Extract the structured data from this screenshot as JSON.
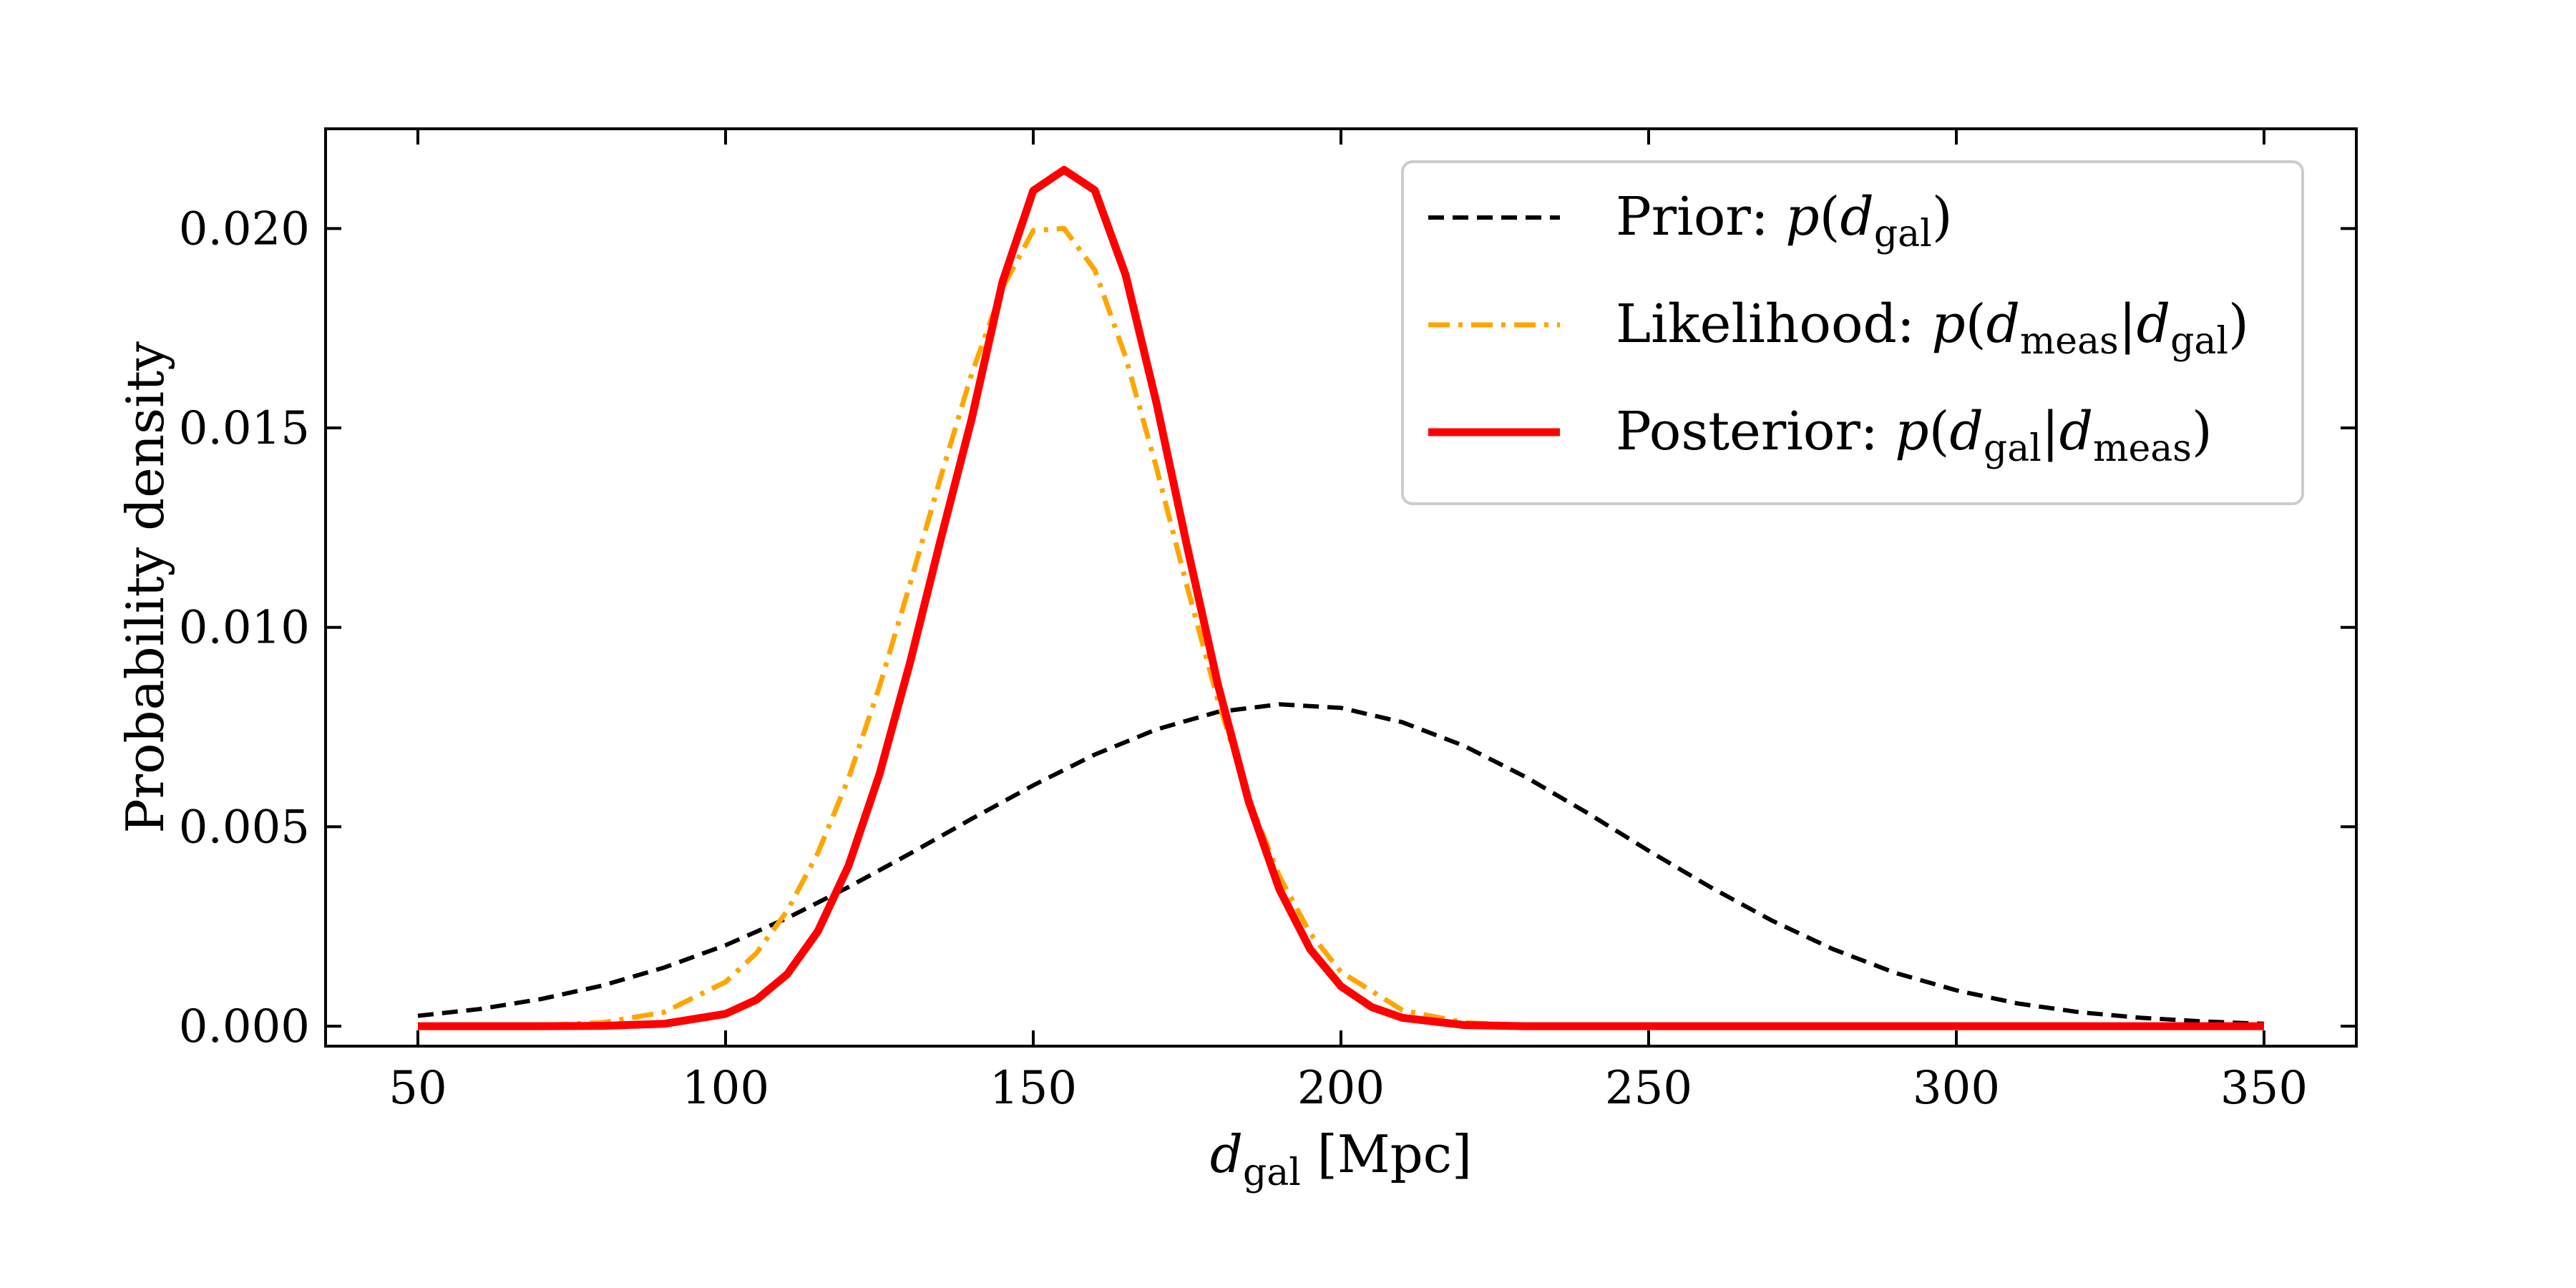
{
  "chart_data": {
    "type": "line",
    "xlabel": {
      "var": "d",
      "sub": "gal",
      "suffix": " [Mpc]"
    },
    "ylabel": "Probability density",
    "xlim": [
      35,
      365
    ],
    "ylim": [
      -0.0005,
      0.0225
    ],
    "xticks": [
      50,
      100,
      150,
      200,
      250,
      300,
      350
    ],
    "xtick_labels": [
      "50",
      "100",
      "150",
      "200",
      "250",
      "300",
      "350"
    ],
    "yticks": [
      0.0,
      0.005,
      0.01,
      0.015,
      0.02
    ],
    "ytick_labels": [
      "0.000",
      "0.005",
      "0.010",
      "0.015",
      "0.020"
    ],
    "grid": false,
    "legend_position": "top-right",
    "series": [
      {
        "name": "Prior: p(d_gal)",
        "legend": {
          "prefix": "Prior: ",
          "math": [
            [
              "p(",
              ""
            ],
            [
              "d",
              "gal"
            ],
            [
              ")",
              ""
            ]
          ]
        },
        "style": "dashed",
        "color": "#000000",
        "x": [
          50,
          60,
          70,
          80,
          90,
          100,
          110,
          120,
          130,
          140,
          150,
          160,
          170,
          180,
          190,
          200,
          210,
          220,
          230,
          240,
          250,
          260,
          270,
          280,
          290,
          300,
          310,
          320,
          330,
          340,
          350
        ],
        "y": [
          0.00026,
          0.00043,
          0.00068,
          0.00102,
          0.00147,
          0.00203,
          0.00271,
          0.00349,
          0.00433,
          0.0052,
          0.00604,
          0.00681,
          0.00744,
          0.00788,
          0.00807,
          0.00798,
          0.00762,
          0.00703,
          0.00625,
          0.00535,
          0.0044,
          0.00349,
          0.00265,
          0.00193,
          0.00134,
          0.0009,
          0.00057,
          0.00035,
          0.00021,
          0.00012,
          6e-05
        ]
      },
      {
        "name": "Likelihood: p(d_meas|d_gal)",
        "legend": {
          "prefix": "Likelihood: ",
          "math": [
            [
              "p(",
              ""
            ],
            [
              "d",
              "meas"
            ],
            [
              "|",
              ""
            ],
            [
              "d",
              "gal"
            ],
            [
              ")",
              ""
            ]
          ]
        },
        "style": "dashdot",
        "color": "#FFA500",
        "x": [
          50,
          60,
          70,
          80,
          90,
          100,
          105,
          110,
          115,
          120,
          125,
          130,
          135,
          140,
          145,
          150,
          155,
          160,
          165,
          170,
          175,
          180,
          185,
          190,
          195,
          200,
          210,
          220,
          230,
          240,
          250,
          260,
          280,
          300,
          350
        ],
        "y": [
          0.0,
          0.0,
          2e-05,
          9e-05,
          0.00035,
          0.00111,
          0.00183,
          0.00289,
          0.00434,
          0.00622,
          0.00851,
          0.0111,
          0.01379,
          0.01636,
          0.01851,
          0.01995,
          0.02,
          0.01896,
          0.01678,
          0.01401,
          0.01102,
          0.00818,
          0.00572,
          0.00376,
          0.00233,
          0.00136,
          0.0004,
          9e-05,
          2e-05,
          0.0,
          0.0,
          0.0,
          0.0,
          0.0,
          0.0
        ]
      },
      {
        "name": "Posterior: p(d_gal|d_meas)",
        "legend": {
          "prefix": "Posterior: ",
          "math": [
            [
              "p(",
              ""
            ],
            [
              "d",
              "gal"
            ],
            [
              "|",
              ""
            ],
            [
              "d",
              "meas"
            ],
            [
              ")",
              ""
            ]
          ]
        },
        "style": "solid",
        "color": "#FF0000",
        "x": [
          50,
          60,
          70,
          80,
          90,
          100,
          105,
          110,
          115,
          120,
          125,
          130,
          135,
          140,
          145,
          150,
          155,
          160,
          165,
          170,
          175,
          180,
          185,
          190,
          195,
          200,
          205,
          210,
          220,
          230,
          240,
          250,
          260,
          280,
          300,
          350
        ],
        "y": [
          0.0,
          0.0,
          0.0,
          1e-05,
          6e-05,
          0.00031,
          0.00066,
          0.0013,
          0.00238,
          0.00403,
          0.00631,
          0.00913,
          0.01223,
          0.01523,
          0.01866,
          0.02095,
          0.02147,
          0.02096,
          0.01884,
          0.01564,
          0.01203,
          0.00857,
          0.00564,
          0.00343,
          0.00193,
          0.001,
          0.00048,
          0.00021,
          3e-05,
          0.0,
          0.0,
          0.0,
          0.0,
          0.0,
          0.0,
          0.0
        ]
      }
    ]
  }
}
